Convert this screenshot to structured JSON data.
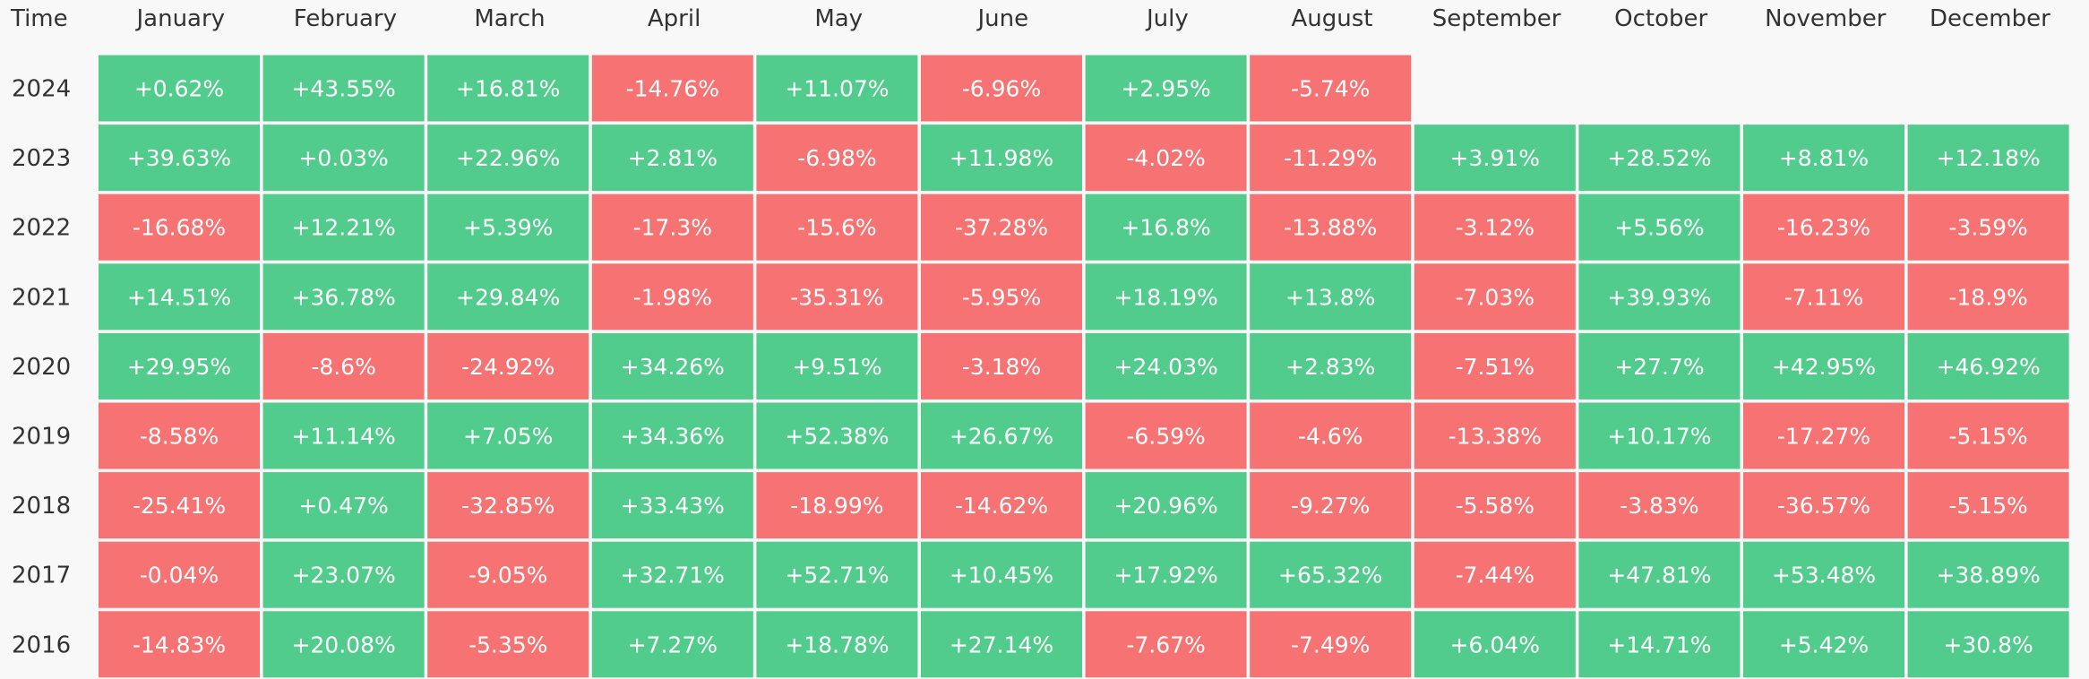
{
  "chart_data": {
    "type": "heatmap",
    "title": "",
    "corner_label": "Time",
    "months": [
      "January",
      "February",
      "March",
      "April",
      "May",
      "June",
      "July",
      "August",
      "September",
      "October",
      "November",
      "December"
    ],
    "years": [
      "2024",
      "2023",
      "2022",
      "2021",
      "2020",
      "2019",
      "2018",
      "2017",
      "2016"
    ],
    "values": [
      [
        "+0.62%",
        "+43.55%",
        "+16.81%",
        "-14.76%",
        "+11.07%",
        "-6.96%",
        "+2.95%",
        "-5.74%",
        null,
        null,
        null,
        null
      ],
      [
        "+39.63%",
        "+0.03%",
        "+22.96%",
        "+2.81%",
        "-6.98%",
        "+11.98%",
        "-4.02%",
        "-11.29%",
        "+3.91%",
        "+28.52%",
        "+8.81%",
        "+12.18%"
      ],
      [
        "-16.68%",
        "+12.21%",
        "+5.39%",
        "-17.3%",
        "-15.6%",
        "-37.28%",
        "+16.8%",
        "-13.88%",
        "-3.12%",
        "+5.56%",
        "-16.23%",
        "-3.59%"
      ],
      [
        "+14.51%",
        "+36.78%",
        "+29.84%",
        "-1.98%",
        "-35.31%",
        "-5.95%",
        "+18.19%",
        "+13.8%",
        "-7.03%",
        "+39.93%",
        "-7.11%",
        "-18.9%"
      ],
      [
        "+29.95%",
        "-8.6%",
        "-24.92%",
        "+34.26%",
        "+9.51%",
        "-3.18%",
        "+24.03%",
        "+2.83%",
        "-7.51%",
        "+27.7%",
        "+42.95%",
        "+46.92%"
      ],
      [
        "-8.58%",
        "+11.14%",
        "+7.05%",
        "+34.36%",
        "+52.38%",
        "+26.67%",
        "-6.59%",
        "-4.6%",
        "-13.38%",
        "+10.17%",
        "-17.27%",
        "-5.15%"
      ],
      [
        "-25.41%",
        "+0.47%",
        "-32.85%",
        "+33.43%",
        "-18.99%",
        "-14.62%",
        "+20.96%",
        "-9.27%",
        "-5.58%",
        "-3.83%",
        "-36.57%",
        "-5.15%"
      ],
      [
        "-0.04%",
        "+23.07%",
        "-9.05%",
        "+32.71%",
        "+52.71%",
        "+10.45%",
        "+17.92%",
        "+65.32%",
        "-7.44%",
        "+47.81%",
        "+53.48%",
        "+38.89%"
      ],
      [
        "-14.83%",
        "+20.08%",
        "-5.35%",
        "+7.27%",
        "+18.78%",
        "+27.14%",
        "-7.67%",
        "-7.49%",
        "+6.04%",
        "+14.71%",
        "+5.42%",
        "+30.8%"
      ]
    ],
    "colors": {
      "positive": "#52cc8c",
      "negative": "#f77272",
      "cell_text": "#ffffff",
      "label_text": "#333333",
      "background": "#f8f8f8"
    }
  }
}
